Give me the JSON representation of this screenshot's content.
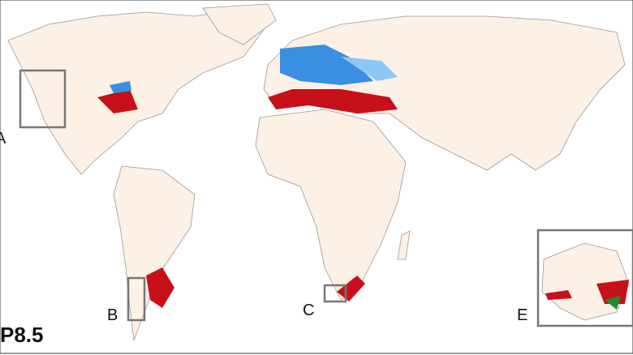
{
  "map": {
    "scenario_label": "P8.5",
    "inset_labels": [
      "A",
      "B",
      "C",
      "E"
    ],
    "colors": {
      "land": "#fdf0e4",
      "border": "#999999",
      "frame": "#777777",
      "red": "#c8101a",
      "blue": "#3a8fe0",
      "lightblue": "#8cc8f5",
      "green": "#1f8a2e"
    }
  }
}
